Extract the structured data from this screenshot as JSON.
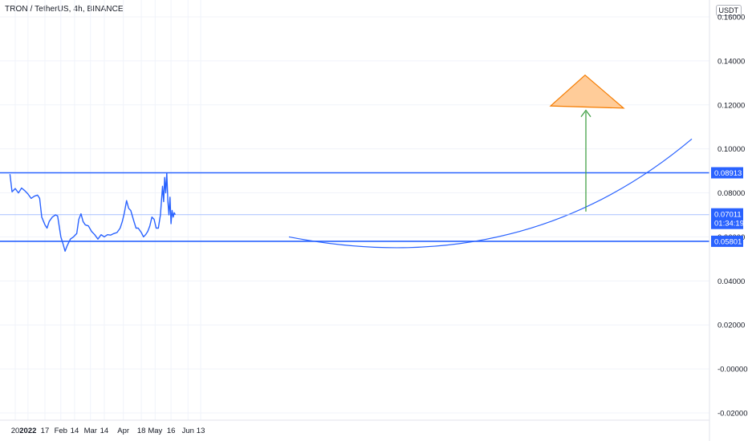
{
  "header": {
    "symbol_title": "TRON / TetherUS, 4h, BINANCE",
    "currency": "USDT"
  },
  "colors": {
    "price_line": "#2962ff",
    "level_line": "#2962ff",
    "curve": "#2962ff",
    "arrow": "#43a047",
    "triangle_fill": "#ffcc99",
    "triangle_stroke": "#f57c00",
    "grid": "#f0f3fa",
    "tag_bg": "#2962ff",
    "current_line": "#a8c1ff"
  },
  "chart_data": {
    "type": "line",
    "title": "TRON / TetherUS, 4h, BINANCE",
    "xlabel": "",
    "ylabel": "",
    "y_ticks": [
      "0.16000",
      "0.14000",
      "0.12000",
      "0.10000",
      "0.08000",
      "0.06000",
      "0.04000",
      "0.02000",
      "-0.00000",
      "-0.02000"
    ],
    "x_ticks": [
      "20",
      "2022",
      "17",
      "Feb",
      "14",
      "Mar",
      "14",
      "Apr",
      "18",
      "May",
      "16",
      "Jun",
      "13"
    ],
    "ylim": [
      -0.02,
      0.16
    ],
    "grid": true,
    "series": [
      {
        "values": [
          [
            "2021-12-15",
            0.0885
          ],
          [
            "2021-12-17",
            0.0805
          ],
          [
            "2021-12-20",
            0.082
          ],
          [
            "2021-12-23",
            0.08
          ],
          [
            "2021-12-26",
            0.0822
          ],
          [
            "2021-12-29",
            0.081
          ],
          [
            "2022-01-01",
            0.0795
          ],
          [
            "2022-01-04",
            0.0775
          ],
          [
            "2022-01-07",
            0.0785
          ],
          [
            "2022-01-10",
            0.079
          ],
          [
            "2022-01-12",
            0.0775
          ],
          [
            "2022-01-14",
            0.069
          ],
          [
            "2022-01-17",
            0.0655
          ],
          [
            "2022-01-19",
            0.064
          ],
          [
            "2022-01-21",
            0.067
          ],
          [
            "2022-01-24",
            0.069
          ],
          [
            "2022-01-27",
            0.07
          ],
          [
            "2022-01-29",
            0.0695
          ],
          [
            "2022-02-01",
            0.06
          ],
          [
            "2022-02-03",
            0.057
          ],
          [
            "2022-02-05",
            0.0535
          ],
          [
            "2022-02-07",
            0.056
          ],
          [
            "2022-02-10",
            0.059
          ],
          [
            "2022-02-13",
            0.06
          ],
          [
            "2022-02-16",
            0.0615
          ],
          [
            "2022-02-18",
            0.068
          ],
          [
            "2022-02-20",
            0.0705
          ],
          [
            "2022-02-22",
            0.067
          ],
          [
            "2022-02-24",
            0.0655
          ],
          [
            "2022-02-27",
            0.065
          ],
          [
            "2022-03-02",
            0.0625
          ],
          [
            "2022-03-05",
            0.061
          ],
          [
            "2022-03-08",
            0.059
          ],
          [
            "2022-03-11",
            0.061
          ],
          [
            "2022-03-14",
            0.06
          ],
          [
            "2022-03-17",
            0.061
          ],
          [
            "2022-03-20",
            0.0608
          ],
          [
            "2022-03-23",
            0.0615
          ],
          [
            "2022-03-26",
            0.062
          ],
          [
            "2022-03-29",
            0.064
          ],
          [
            "2022-03-31",
            0.067
          ],
          [
            "2022-04-02",
            0.071
          ],
          [
            "2022-04-04",
            0.0765
          ],
          [
            "2022-04-06",
            0.073
          ],
          [
            "2022-04-08",
            0.072
          ],
          [
            "2022-04-11",
            0.067
          ],
          [
            "2022-04-13",
            0.064
          ],
          [
            "2022-04-15",
            0.064
          ],
          [
            "2022-04-18",
            0.062
          ],
          [
            "2022-04-20",
            0.06
          ],
          [
            "2022-04-22",
            0.061
          ],
          [
            "2022-04-24",
            0.0625
          ],
          [
            "2022-04-26",
            0.065
          ],
          [
            "2022-04-28",
            0.069
          ],
          [
            "2022-04-30",
            0.068
          ],
          [
            "2022-05-02",
            0.064
          ],
          [
            "2022-05-04",
            0.064
          ],
          [
            "2022-05-06",
            0.07
          ],
          [
            "2022-05-08",
            0.083
          ],
          [
            "2022-05-09",
            0.076
          ],
          [
            "2022-05-10",
            0.087
          ],
          [
            "2022-05-11",
            0.08
          ],
          [
            "2022-05-12",
            0.0891
          ],
          [
            "2022-05-13",
            0.076
          ],
          [
            "2022-05-14",
            0.07
          ],
          [
            "2022-05-15",
            0.078
          ],
          [
            "2022-05-16",
            0.066
          ],
          [
            "2022-05-17",
            0.072
          ],
          [
            "2022-05-18",
            0.069
          ],
          [
            "2022-05-19",
            0.071
          ],
          [
            "2022-05-20",
            0.0701
          ]
        ]
      }
    ],
    "levels": [
      {
        "label": "0.08913",
        "value": 0.08913
      },
      {
        "label": "0.05801",
        "value": 0.05801
      }
    ],
    "current": {
      "price_label": "0.07011",
      "value": 0.07011,
      "countdown": "01:34:19"
    },
    "annotations": {
      "curve": "arc",
      "arrow": "up",
      "target_shape": "triangle"
    }
  }
}
